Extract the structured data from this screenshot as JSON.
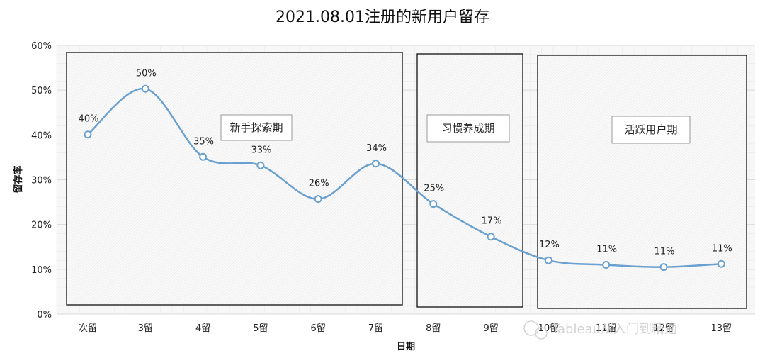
{
  "chart_data": {
    "type": "line",
    "title": "2021.08.01注册的新用户留存",
    "xlabel": "日期",
    "ylabel": "留存率",
    "categories": [
      "次留",
      "3留",
      "4留",
      "5留",
      "6留",
      "7留",
      "8留",
      "9留",
      "10留",
      "11留",
      "12留",
      "13留"
    ],
    "series": [
      {
        "values": [
          0.401,
          0.503,
          0.351,
          0.332,
          0.257,
          0.336,
          0.246,
          0.173,
          0.12,
          0.11,
          0.105,
          0.112
        ]
      }
    ],
    "data_labels": [
      "40%",
      "50%",
      "35%",
      "33%",
      "26%",
      "34%",
      "25%",
      "17%",
      "12%",
      "11%",
      "11%",
      "11%"
    ],
    "y_ticks": [
      "0%",
      "10%",
      "20%",
      "30%",
      "40%",
      "50%",
      "60%"
    ],
    "ylim": [
      0,
      0.6
    ],
    "grid": true,
    "line_color": "#6aa0cf",
    "phases": [
      {
        "label": "新手探索期",
        "from": "次留",
        "to": "7留"
      },
      {
        "label": "习惯养成期",
        "from": "8留",
        "to": "9留"
      },
      {
        "label": "活跃用户期",
        "from": "10留",
        "to": "13留"
      }
    ]
  },
  "watermark": "Tableau从入门到精通"
}
